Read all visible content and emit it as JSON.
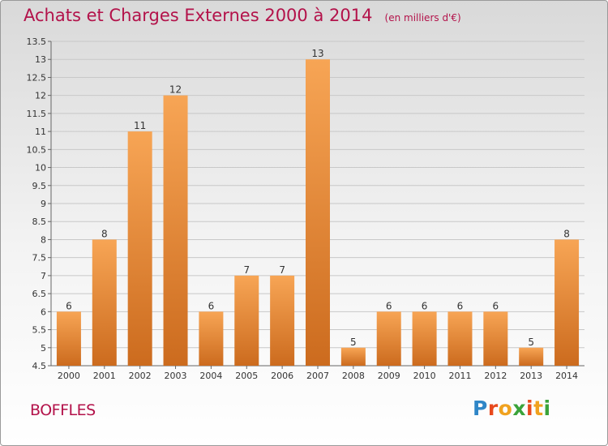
{
  "title": "Achats et Charges Externes 2000 à 2014",
  "subtitle": "(en milliers d'€)",
  "place": "BOFFLES",
  "brand": {
    "letters": [
      "P",
      "r",
      "o",
      "x",
      "i",
      "t",
      "i"
    ],
    "colors": [
      "#2f86c7",
      "#e8491d",
      "#f0a21f",
      "#3aa33a",
      "#e8491d",
      "#f0a21f",
      "#3aa33a"
    ]
  },
  "colors": {
    "bar_top": "#f7a555",
    "bar_bottom": "#cc6b1e",
    "title": "#b3124a"
  },
  "chart_data": {
    "type": "bar",
    "categories": [
      "2000",
      "2001",
      "2002",
      "2003",
      "2004",
      "2005",
      "2006",
      "2007",
      "2008",
      "2009",
      "2010",
      "2011",
      "2012",
      "2013",
      "2014"
    ],
    "values": [
      6,
      8,
      11,
      12,
      6,
      7,
      7,
      13,
      5,
      6,
      6,
      6,
      6,
      5,
      8
    ],
    "ylim": [
      4.5,
      13.5
    ],
    "yticks": [
      "4.5",
      "5",
      "5.5",
      "6",
      "6.5",
      "7",
      "7.5",
      "8",
      "8.5",
      "9",
      "9.5",
      "10",
      "10.5",
      "11",
      "11.5",
      "12",
      "12.5",
      "13",
      "13.5"
    ],
    "grid": true
  }
}
